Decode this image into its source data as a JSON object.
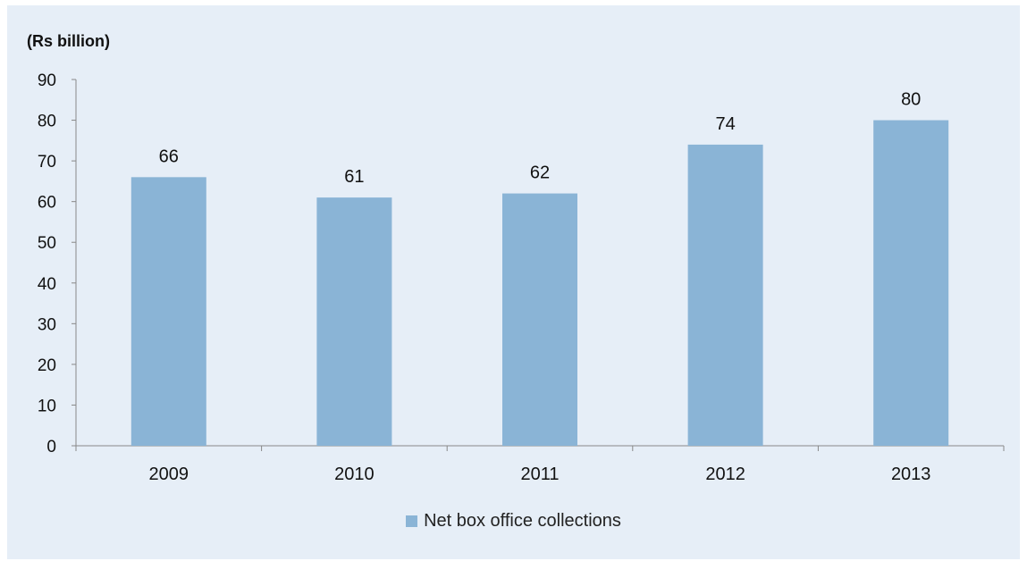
{
  "chart_data": {
    "type": "bar",
    "unit_label": "(Rs billion)",
    "categories": [
      "2009",
      "2010",
      "2011",
      "2012",
      "2013"
    ],
    "series": [
      {
        "name": "Net box office collections",
        "values": [
          66,
          61,
          62,
          74,
          80
        ],
        "color": "#8ab4d6"
      }
    ],
    "data_labels": [
      "66",
      "61",
      "62",
      "74",
      "80"
    ],
    "ylim": [
      0,
      90
    ],
    "yticks": [
      0,
      10,
      20,
      30,
      40,
      50,
      60,
      70,
      80,
      90
    ],
    "grid": false,
    "legend_position": "bottom"
  },
  "colors": {
    "background": "#e6eef7",
    "bar": "#8ab4d6",
    "axis": "#888888"
  }
}
